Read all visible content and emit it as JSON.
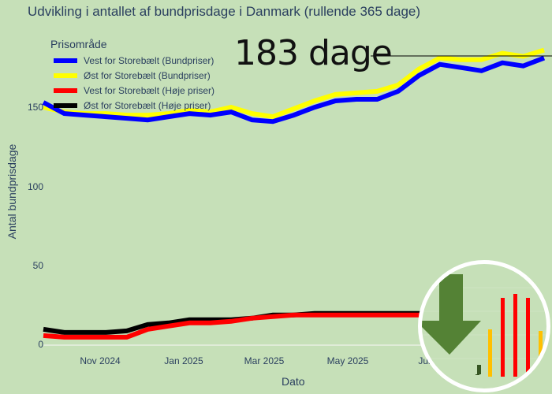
{
  "chart_data": {
    "type": "line",
    "title": "Udvikling i antallet af bundprisdage i Danmark (rullende 365 dage)",
    "xlabel": "Dato",
    "ylabel": "Antal bundprisdage",
    "ylim": [
      0,
      190
    ],
    "yticks": [
      0,
      50,
      100,
      150
    ],
    "xticks": [
      "Nov 2024",
      "Jan 2025",
      "Mar 2025",
      "May 2025",
      "Jul"
    ],
    "grid": false,
    "legend_title": "Prisområde",
    "legend_position": "top-left inside",
    "x": [
      "2024-09-15",
      "2024-10-01",
      "2024-10-15",
      "2024-11-01",
      "2024-11-15",
      "2024-12-01",
      "2024-12-15",
      "2025-01-01",
      "2025-01-15",
      "2025-02-01",
      "2025-02-15",
      "2025-03-01",
      "2025-03-15",
      "2025-04-01",
      "2025-04-15",
      "2025-05-01",
      "2025-05-15",
      "2025-06-01",
      "2025-06-15",
      "2025-07-01",
      "2025-07-15",
      "2025-08-01",
      "2025-08-15",
      "2025-09-01",
      "2025-09-10"
    ],
    "series": [
      {
        "name": "Vest for Storebælt (Bundpriser)",
        "color": "#0000ff",
        "values": [
          153,
          146,
          145,
          144,
          143,
          142,
          144,
          146,
          145,
          147,
          142,
          141,
          145,
          150,
          154,
          155,
          155,
          160,
          170,
          177,
          175,
          173,
          178,
          176,
          181
        ]
      },
      {
        "name": "Øst for Storebælt (Bundpriser)",
        "color": "#ffff00",
        "values": [
          150,
          147,
          146,
          146,
          145,
          145,
          146,
          148,
          147,
          150,
          146,
          144,
          149,
          154,
          158,
          159,
          160,
          164,
          174,
          181,
          180,
          180,
          184,
          182,
          186
        ]
      },
      {
        "name": "Vest for Storebælt (Høje priser)",
        "color": "#ff0000",
        "values": [
          6,
          5,
          5,
          5,
          5,
          10,
          12,
          14,
          14,
          15,
          17,
          18,
          19,
          19,
          19,
          19,
          19,
          19,
          19,
          19,
          19,
          19,
          19,
          19,
          19
        ]
      },
      {
        "name": "Øst for Storebælt (Høje priser)",
        "color": "#000000",
        "values": [
          10,
          8,
          8,
          8,
          9,
          13,
          14,
          16,
          16,
          16,
          17,
          19,
          19,
          20,
          20,
          20,
          20,
          20,
          20,
          20,
          20,
          20,
          20,
          20,
          20
        ]
      }
    ],
    "annotations": [
      {
        "text": "183 dage",
        "target_value": 183
      }
    ]
  },
  "ui": {
    "title": "Udvikling i antallet af bundprisdage i Danmark (rullende 365 dage)",
    "ylabel": "Antal bundprisdage",
    "xlabel": "Dato",
    "yticks": [
      "0",
      "50",
      "100",
      "150"
    ],
    "xticks": [
      "Nov 2024",
      "Jan 2025",
      "Mar 2025",
      "May 2025",
      "Jul"
    ],
    "legend_title": "Prisområde",
    "legend": [
      {
        "label": "Vest for Storebælt (Bundpriser)",
        "color": "#0000ff"
      },
      {
        "label": "Øst for Storebælt (Bundpriser)",
        "color": "#ffff00"
      },
      {
        "label": "Vest for Storebælt (Høje priser)",
        "color": "#ff0000"
      },
      {
        "label": "Øst for Storebælt (Høje priser)",
        "color": "#000000"
      }
    ],
    "annotation": "183 dage",
    "background": "#c6e0b8"
  }
}
